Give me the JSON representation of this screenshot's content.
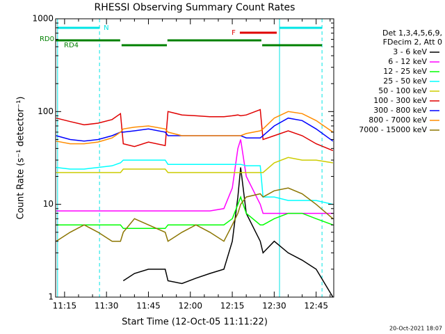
{
  "chart_data": {
    "type": "line",
    "title": "RHESSI Observing Summary Count Rates",
    "xlabel": "Start Time (12-Oct-05 11:11:22)",
    "ylabel": "Count Rate (s⁻¹ detector⁻¹)",
    "legend_header": [
      "Det 1,3,4,5,6,9,",
      "FDecim 2, Att 0"
    ],
    "footer": "20-Oct-2021 18:07",
    "log_y": true,
    "xlim": [
      671.8,
      771.3
    ],
    "ylim": [
      1,
      1000
    ],
    "xticks": [
      {
        "value": 675,
        "label": "11:15"
      },
      {
        "value": 690,
        "label": "11:30"
      },
      {
        "value": 705,
        "label": "11:45"
      },
      {
        "value": 720,
        "label": "12:00"
      },
      {
        "value": 735,
        "label": "12:15"
      },
      {
        "value": 750,
        "label": "12:30"
      },
      {
        "value": 765,
        "label": "12:45"
      }
    ],
    "yticks": [
      1,
      10,
      100,
      1000
    ],
    "flags": [
      {
        "label": "N",
        "color": "#00e5e5",
        "intervals": [
          [
            672.5,
            687.5
          ],
          [
            751.9,
            767.1
          ]
        ]
      },
      {
        "label": "F",
        "color": "#e00000",
        "intervals": [
          [
            737.7,
            750.9
          ]
        ]
      },
      {
        "label": "RD0",
        "color": "#008000",
        "intervals": [
          [
            671.8,
            694.9
          ],
          [
            711.8,
            745.4
          ]
        ]
      },
      {
        "label": "RD4",
        "color": "#008000",
        "intervals": [
          [
            695.4,
            711.6
          ],
          [
            745.7,
            767.1
          ]
        ]
      }
    ],
    "x": [
      672,
      677,
      682,
      687,
      692,
      695,
      696,
      700,
      705,
      711,
      712,
      717,
      722,
      727,
      732,
      735,
      737,
      738,
      740,
      745,
      746,
      750,
      755,
      760,
      765,
      771
    ],
    "series": [
      {
        "name": "3 - 6 keV",
        "color": "#000000",
        "values": [
          null,
          null,
          null,
          null,
          null,
          null,
          1.5,
          1.8,
          2,
          2,
          1.5,
          1.4,
          1.6,
          1.8,
          2,
          4,
          12,
          25,
          8,
          4,
          3,
          4,
          3,
          2.5,
          2,
          1
        ]
      },
      {
        "name": "6 - 12 keV",
        "color": "#ff00ff",
        "values": [
          8.5,
          8.5,
          8.5,
          8.5,
          8.5,
          8.5,
          8.5,
          8.5,
          8.5,
          8.5,
          8.5,
          8.5,
          8.5,
          8.5,
          9,
          15,
          40,
          50,
          20,
          10,
          8,
          8,
          8,
          8,
          8,
          8
        ]
      },
      {
        "name": "12 - 25 keV",
        "color": "#00ff00",
        "values": [
          6,
          6,
          6,
          6,
          6,
          6,
          5.5,
          5.5,
          5.5,
          5.5,
          6,
          6,
          6,
          6,
          6,
          7,
          10,
          12,
          8,
          6,
          6,
          7,
          8,
          8,
          7,
          6
        ]
      },
      {
        "name": "25 - 50 keV",
        "color": "#00ffff",
        "values": [
          25,
          24,
          24,
          25,
          26,
          28,
          30,
          30,
          30,
          30,
          27,
          27,
          27,
          27,
          27,
          27,
          27,
          27,
          26,
          26,
          12,
          12,
          11,
          11,
          11,
          10
        ]
      },
      {
        "name": "50 - 100 keV",
        "color": "#cccc00",
        "values": [
          22,
          22,
          22,
          22,
          22,
          22,
          24,
          24,
          24,
          24,
          22,
          22,
          22,
          22,
          22,
          22,
          22,
          22,
          22,
          22,
          22,
          28,
          32,
          30,
          30,
          28
        ]
      },
      {
        "name": "100 - 300 keV",
        "color": "#e00000",
        "values": [
          85,
          78,
          72,
          75,
          82,
          95,
          45,
          42,
          47,
          43,
          100,
          92,
          90,
          88,
          88,
          90,
          92,
          90,
          92,
          105,
          50,
          55,
          62,
          55,
          45,
          38
        ]
      },
      {
        "name": "300 - 800 keV",
        "color": "#0000ff",
        "values": [
          55,
          50,
          48,
          50,
          55,
          60,
          60,
          62,
          65,
          60,
          55,
          55,
          55,
          55,
          55,
          55,
          55,
          55,
          52,
          52,
          55,
          70,
          85,
          80,
          65,
          48
        ]
      },
      {
        "name": "800 - 7000 keV",
        "color": "#ff8c00",
        "values": [
          48,
          45,
          45,
          47,
          52,
          60,
          65,
          68,
          70,
          65,
          60,
          55,
          55,
          55,
          55,
          55,
          55,
          55,
          58,
          62,
          65,
          85,
          100,
          95,
          80,
          60
        ]
      },
      {
        "name": "7000 - 15000 keV",
        "color": "#8b7500",
        "values": [
          4,
          5,
          6,
          5,
          4,
          4,
          5,
          7,
          6,
          5,
          4,
          5,
          6,
          5,
          4,
          6,
          8,
          10,
          12,
          13,
          12,
          14,
          15,
          13,
          10,
          7
        ]
      }
    ]
  }
}
